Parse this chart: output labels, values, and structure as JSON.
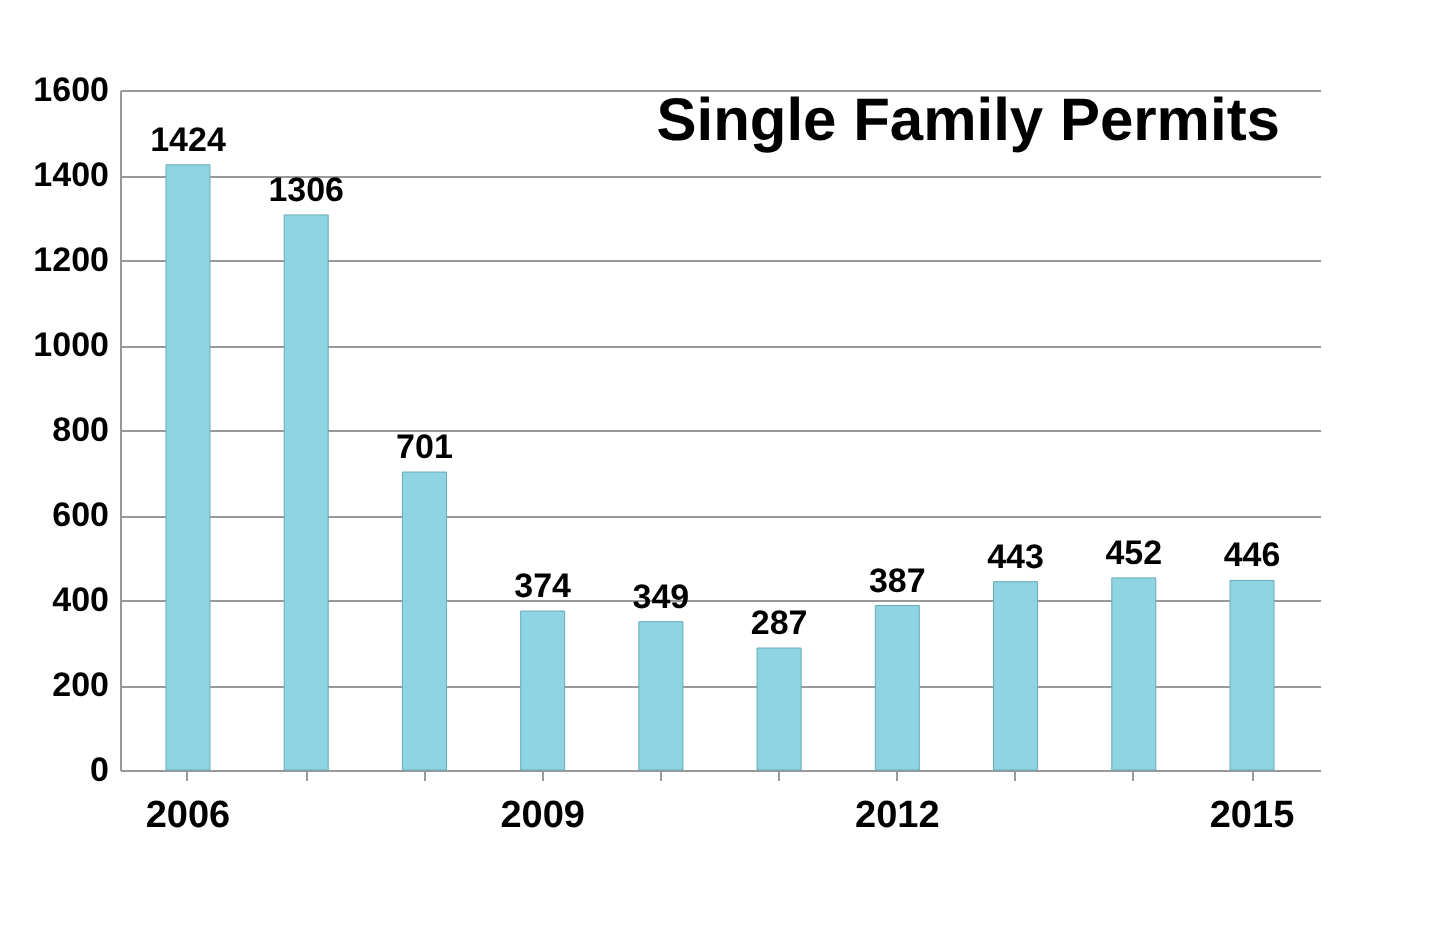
{
  "chart_data": {
    "type": "bar",
    "title": "Single Family Permits",
    "categories": [
      "2006",
      null,
      null,
      "2009",
      null,
      null,
      "2012",
      null,
      null,
      "2015"
    ],
    "values": [
      1424,
      1306,
      701,
      374,
      349,
      287,
      387,
      443,
      452,
      446
    ],
    "color": "#8fd4e2",
    "ylim": [
      0,
      1600
    ],
    "yticks": [
      0,
      200,
      400,
      600,
      800,
      1000,
      1200,
      1400,
      1600
    ],
    "grid": "y",
    "data_labels": true
  }
}
